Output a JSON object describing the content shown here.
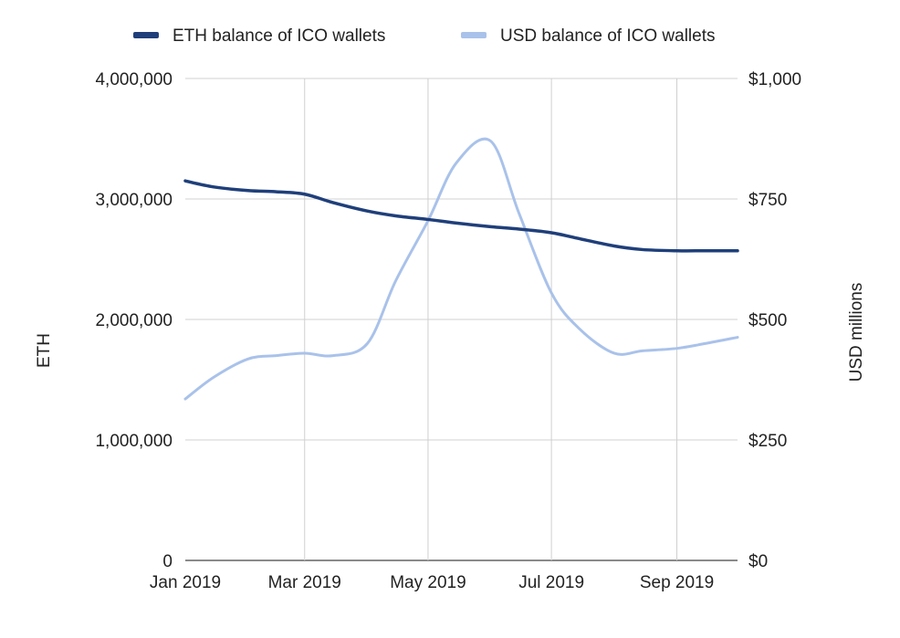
{
  "chart_data": {
    "type": "line",
    "title": "",
    "x": [
      "2019-01-01",
      "2019-01-15",
      "2019-02-01",
      "2019-02-15",
      "2019-03-01",
      "2019-03-15",
      "2019-04-01",
      "2019-04-15",
      "2019-05-01",
      "2019-05-15",
      "2019-06-01",
      "2019-06-15",
      "2019-07-01",
      "2019-07-15",
      "2019-08-01",
      "2019-08-15",
      "2019-09-01",
      "2019-09-15",
      "2019-10-01"
    ],
    "x_tick_labels": [
      "Jan 2019",
      "Mar 2019",
      "May 2019",
      "Jul 2019",
      "Sep 2019"
    ],
    "x_tick_dates": [
      "2019-01-01",
      "2019-03-01",
      "2019-05-01",
      "2019-07-01",
      "2019-09-01"
    ],
    "x_range": [
      "2019-01-01",
      "2019-10-01"
    ],
    "ylabel_left": "ETH",
    "ylabel_right": "USD millions",
    "ylim_left": [
      0,
      4000000
    ],
    "ylim_right": [
      0,
      1000
    ],
    "y_ticks_left": [
      "0",
      "1,000,000",
      "2,000,000",
      "3,000,000",
      "4,000,000"
    ],
    "y_ticks_right": [
      "$0",
      "$250",
      "$500",
      "$750",
      "$1,000"
    ],
    "grid": true,
    "legend_position": "top-center",
    "series": [
      {
        "name": "ETH  balance of ICO wallets",
        "axis": "left",
        "color": "#1f3f7a",
        "values": [
          3150000,
          3100000,
          3070000,
          3060000,
          3040000,
          2970000,
          2900000,
          2860000,
          2830000,
          2800000,
          2770000,
          2750000,
          2720000,
          2670000,
          2610000,
          2580000,
          2570000,
          2570000,
          2570000
        ]
      },
      {
        "name": "USD balance of ICO wallets",
        "axis": "right",
        "color": "#a9c2ea",
        "values": [
          335,
          380,
          418,
          425,
          430,
          425,
          450,
          580,
          705,
          825,
          870,
          720,
          555,
          480,
          430,
          435,
          440,
          450,
          463
        ]
      }
    ]
  }
}
